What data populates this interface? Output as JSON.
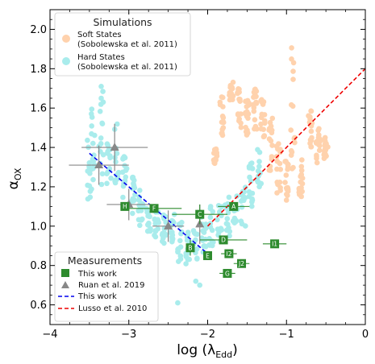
{
  "chart_data": {
    "type": "scatter",
    "title": "",
    "xlabel_prefix": "log (",
    "xlabel_symbol": "λ",
    "xlabel_sub": "Edd",
    "xlabel_suffix": ")",
    "ylabel_symbol": "α",
    "ylabel_sub": "OX",
    "xlim": [
      -4,
      0
    ],
    "ylim": [
      0.5,
      2.1
    ],
    "xticks": [
      -4,
      -3,
      -2,
      -1,
      0
    ],
    "xtick_labels": [
      "−4",
      "−3",
      "−2",
      "−1",
      "0"
    ],
    "yticks": [
      0.6,
      0.8,
      1.0,
      1.2,
      1.4,
      1.6,
      1.8,
      2.0
    ],
    "ytick_labels": [
      "0.6",
      "0.8",
      "1.0",
      "1.2",
      "1.4",
      "1.6",
      "1.8",
      "2.0"
    ],
    "grid": false,
    "legend_top": {
      "title": "Simulations",
      "placement": "top-left",
      "entries": [
        {
          "line1": "Soft States",
          "line2": "(Sobolewska et al. 2011)",
          "color": "#ffd2ad"
        },
        {
          "line1": "Hard States",
          "line2": "(Sobolewska et al. 2011)",
          "color": "#a9ecec"
        }
      ]
    },
    "legend_bottom": {
      "title": "Measurements",
      "placement": "bottom-left",
      "entries": [
        {
          "label": "This work",
          "kind": "square",
          "color": "#2e8b2e"
        },
        {
          "label": "Ruan et al. 2019",
          "kind": "triangle",
          "color": "#888888"
        },
        {
          "label": "This work",
          "kind": "dashed-line",
          "color": "#0000ee"
        },
        {
          "label": "Lusso et al. 2010",
          "kind": "dashed-line",
          "color": "#ee0000"
        }
      ]
    },
    "fit_this_work": {
      "x": [
        -3.5,
        -2.0
      ],
      "y": [
        1.37,
        0.86
      ],
      "color": "#0000ee"
    },
    "fit_lusso": {
      "x": [
        -2.0,
        0.0
      ],
      "y": [
        1.0,
        1.8
      ],
      "color": "#ee0000"
    },
    "this_work_points": [
      {
        "label": "H",
        "x": -3.05,
        "y": 1.1,
        "xerr": 0.0,
        "yerr": 0.0
      },
      {
        "label": "F",
        "x": -2.68,
        "y": 1.09,
        "xerr": 0.35,
        "yerr": 0.0
      },
      {
        "label": "C",
        "x": -2.1,
        "y": 1.06,
        "xerr": 0.35,
        "yerr": 0.05
      },
      {
        "label": "A",
        "x": -1.67,
        "y": 1.1,
        "xerr": 0.2,
        "yerr": 0.0
      },
      {
        "label": "B",
        "x": -2.22,
        "y": 0.89,
        "xerr": 0.0,
        "yerr": 0.04
      },
      {
        "label": "E",
        "x": -2.0,
        "y": 0.85,
        "xerr": 0.0,
        "yerr": 0.0
      },
      {
        "label": "D",
        "x": -1.8,
        "y": 0.93,
        "xerr": 0.3,
        "yerr": 0.0
      },
      {
        "label": "I1",
        "x": -1.15,
        "y": 0.91,
        "xerr": 0.15,
        "yerr": 0.0
      },
      {
        "label": "I2",
        "x": -1.73,
        "y": 0.86,
        "xerr": 0.1,
        "yerr": 0.0
      },
      {
        "label": "J2",
        "x": -1.57,
        "y": 0.81,
        "xerr": 0.1,
        "yerr": 0.0
      },
      {
        "label": "G",
        "x": -1.75,
        "y": 0.76,
        "xerr": 0.1,
        "yerr": 0.0
      }
    ],
    "ruan_points": [
      {
        "x": -3.38,
        "y": 1.31,
        "xerr": 0.38,
        "yerr": 0.1
      },
      {
        "x": -3.18,
        "y": 1.4,
        "xerr": 0.42,
        "yerr": 0.12
      },
      {
        "x": -3.0,
        "y": 1.11,
        "xerr": 0.28,
        "yerr": 0.08
      },
      {
        "x": -2.5,
        "y": 1.0,
        "xerr": 0.2,
        "yerr": 0.08
      },
      {
        "x": -2.1,
        "y": 1.01,
        "xerr": 0.0,
        "yerr": 0.1
      }
    ],
    "soft_clusters": [
      {
        "x": -1.9,
        "y": 1.35,
        "spread": 0.045
      },
      {
        "x": -1.82,
        "y": 1.55,
        "spread": 0.12
      },
      {
        "x": -1.7,
        "y": 1.7,
        "spread": 0.06
      },
      {
        "x": -1.6,
        "y": 1.6,
        "spread": 0.1
      },
      {
        "x": -1.5,
        "y": 1.55,
        "spread": 0.1
      },
      {
        "x": -1.4,
        "y": 1.6,
        "spread": 0.11
      },
      {
        "x": -1.3,
        "y": 1.55,
        "spread": 0.1
      },
      {
        "x": -1.2,
        "y": 1.42,
        "spread": 0.14
      },
      {
        "x": -1.1,
        "y": 1.3,
        "spread": 0.15
      },
      {
        "x": -1.0,
        "y": 1.25,
        "spread": 0.12
      },
      {
        "x": -0.92,
        "y": 1.6,
        "spread": 0.35
      },
      {
        "x": -0.82,
        "y": 1.25,
        "spread": 0.1
      },
      {
        "x": -0.7,
        "y": 1.5,
        "spread": 0.1
      },
      {
        "x": -0.6,
        "y": 1.4,
        "spread": 0.1
      },
      {
        "x": -0.5,
        "y": 1.4,
        "spread": 0.06
      }
    ],
    "hard_clusters": [
      {
        "x": -3.5,
        "y": 1.3,
        "spread": 0.18
      },
      {
        "x": -3.45,
        "y": 1.4,
        "spread": 0.2
      },
      {
        "x": -3.35,
        "y": 1.45,
        "spread": 0.25
      },
      {
        "x": -3.25,
        "y": 1.3,
        "spread": 0.12
      },
      {
        "x": -3.15,
        "y": 1.4,
        "spread": 0.18
      },
      {
        "x": -3.05,
        "y": 1.25,
        "spread": 0.12
      },
      {
        "x": -2.95,
        "y": 1.15,
        "spread": 0.1
      },
      {
        "x": -2.85,
        "y": 1.1,
        "spread": 0.1
      },
      {
        "x": -2.75,
        "y": 1.05,
        "spread": 0.08
      },
      {
        "x": -2.65,
        "y": 1.0,
        "spread": 0.08
      },
      {
        "x": -2.55,
        "y": 0.98,
        "spread": 0.08
      },
      {
        "x": -2.45,
        "y": 1.0,
        "spread": 0.08
      },
      {
        "x": -2.35,
        "y": 0.92,
        "spread": 0.1
      },
      {
        "x": -2.25,
        "y": 0.88,
        "spread": 0.1
      },
      {
        "x": -2.15,
        "y": 0.92,
        "spread": 0.1
      },
      {
        "x": -2.05,
        "y": 0.95,
        "spread": 0.1
      },
      {
        "x": -1.95,
        "y": 1.0,
        "spread": 0.1
      },
      {
        "x": -1.85,
        "y": 1.02,
        "spread": 0.1
      },
      {
        "x": -1.75,
        "y": 1.05,
        "spread": 0.1
      },
      {
        "x": -1.65,
        "y": 1.08,
        "spread": 0.08
      },
      {
        "x": -1.55,
        "y": 1.1,
        "spread": 0.1
      },
      {
        "x": -1.45,
        "y": 1.22,
        "spread": 0.12
      },
      {
        "x": -1.35,
        "y": 1.3,
        "spread": 0.1
      }
    ],
    "extra_hard_points": [
      {
        "x": -3.35,
        "y": 1.71
      },
      {
        "x": -3.35,
        "y": 1.65
      },
      {
        "x": -2.38,
        "y": 0.61
      },
      {
        "x": -2.15,
        "y": 0.72
      },
      {
        "x": -2.1,
        "y": 0.7
      }
    ]
  }
}
